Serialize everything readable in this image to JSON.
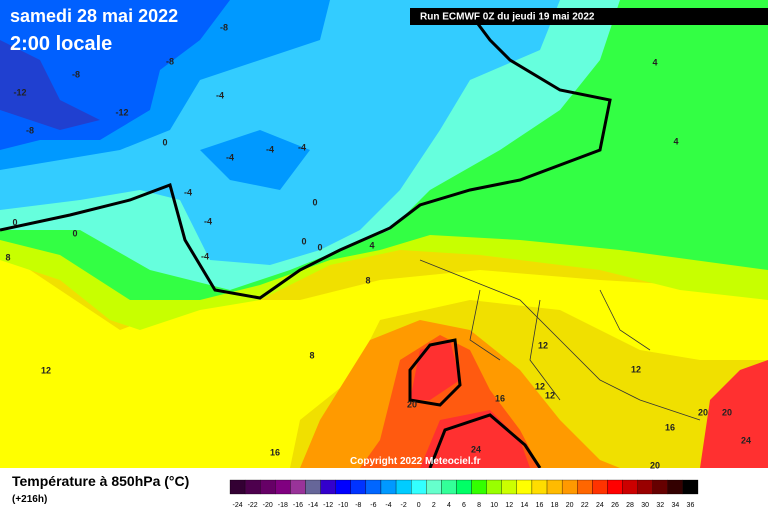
{
  "header": {
    "title": "samedi 28 mai 2022",
    "subtitle": "2:00 locale",
    "run": "Run ECMWF 0Z du jeudi 19 mai 2022"
  },
  "copyright": "Copyright 2022 Meteociel.fr",
  "footer": {
    "title": "Température à 850hPa (°C)",
    "lead": "(+216h)"
  },
  "colorbar": {
    "values": [
      -24,
      -22,
      -20,
      -18,
      -16,
      -14,
      -12,
      -10,
      -8,
      -6,
      -4,
      -2,
      0,
      2,
      4,
      6,
      8,
      10,
      12,
      14,
      16,
      18,
      20,
      22,
      24,
      26,
      28,
      30,
      32,
      34,
      36
    ],
    "colors": [
      "#330033",
      "#4d004d",
      "#660066",
      "#800080",
      "#993399",
      "#666699",
      "#3300cc",
      "#0000ff",
      "#0033ff",
      "#0066ff",
      "#0099ff",
      "#00ccff",
      "#33ffff",
      "#66ffcc",
      "#33ff99",
      "#00ff66",
      "#33ff00",
      "#99ff00",
      "#ccff00",
      "#ffff00",
      "#ffdd00",
      "#ffbb00",
      "#ff9900",
      "#ff6600",
      "#ff3300",
      "#ff0000",
      "#cc0000",
      "#990000",
      "#660000",
      "#330000",
      "#000000"
    ]
  },
  "map_labels": [
    -8,
    -8,
    -8,
    -12,
    -12,
    -8,
    -4,
    0,
    -4,
    -4,
    -4,
    -4,
    0,
    -4,
    0,
    0,
    0,
    0,
    -4,
    4,
    4,
    4,
    8,
    8,
    8,
    12,
    12,
    12,
    12,
    12,
    20,
    16,
    16,
    20,
    20,
    24,
    24,
    16,
    20
  ]
}
